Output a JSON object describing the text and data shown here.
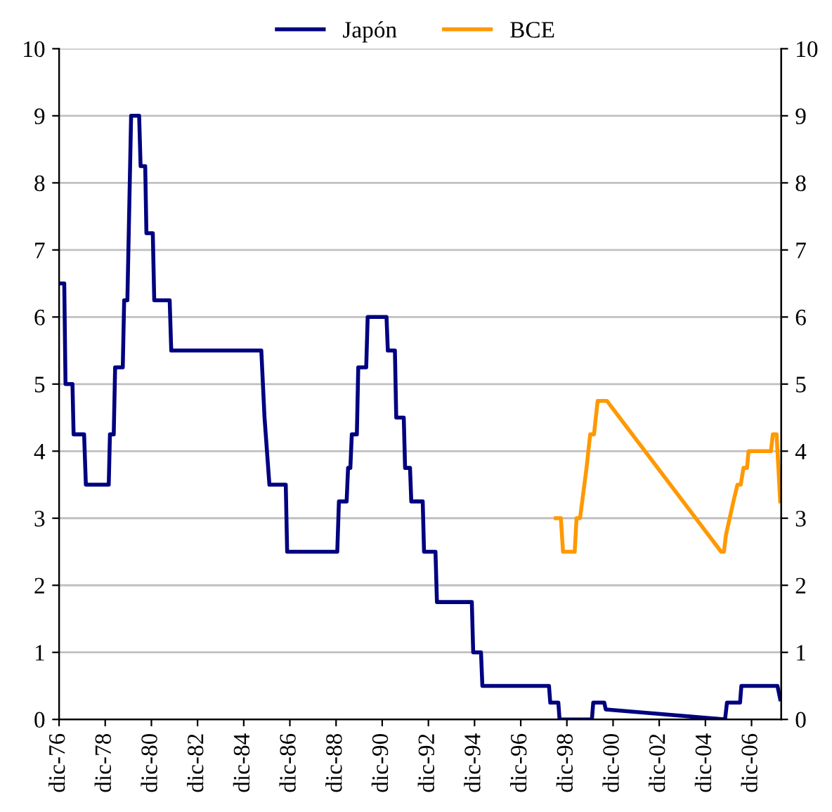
{
  "chart_data": {
    "type": "line",
    "series": [
      {
        "name": "Japón",
        "color": "#000080",
        "x": [
          "1976-12-01",
          "1977-02-21",
          "1977-03-13",
          "1977-07-01",
          "1977-07-19",
          "1978-01-01",
          "1978-01-29",
          "1979-01-26",
          "1979-02-14",
          "1979-04-15",
          "1979-05-07",
          "1979-09-05",
          "1979-09-27",
          "1979-11-17",
          "1980-01-15",
          "1980-05-21",
          "1980-06-13",
          "1980-08-25",
          "1980-09-13",
          "1980-12-23",
          "1981-01-15",
          "1981-09-16",
          "1981-10-11",
          "1985-09-05",
          "1985-10-26",
          "1986-01-11",
          "1986-09-27",
          "1986-10-19",
          "1988-12-20",
          "1989-01-15",
          "1989-05-17",
          "1989-06-09",
          "1989-07-15",
          "1989-08-07",
          "1989-10-26",
          "1989-11-17",
          "1990-03-23",
          "1990-04-15",
          "1991-02-07",
          "1991-02-28",
          "1991-06-20",
          "1991-07-11",
          "1991-11-07",
          "1991-11-28",
          "1992-02-14",
          "1992-03-05",
          "1992-09-02",
          "1992-09-23",
          "1993-03-23",
          "1993-04-15",
          "1994-10-19",
          "1994-11-10",
          "1995-03-13",
          "1995-04-04",
          "1998-02-21",
          "1998-03-13",
          "1998-07-19",
          "1998-08-07",
          "2000-01-01",
          "2000-01-22",
          "2000-07-15",
          "2000-08-07",
          "2005-10-08",
          "2005-11-07",
          "2006-06-02",
          "2006-06-23",
          "2008-01-15",
          "2008-02-28"
        ],
        "values": [
          6.5,
          6.5,
          5.0,
          5.0,
          4.25,
          4.25,
          3.5,
          3.5,
          4.25,
          4.25,
          5.25,
          5.25,
          6.25,
          6.25,
          9.0,
          9.0,
          8.25,
          8.25,
          7.25,
          7.25,
          6.25,
          6.25,
          5.5,
          5.5,
          4.5,
          3.5,
          3.5,
          2.5,
          2.5,
          3.25,
          3.25,
          3.75,
          3.75,
          4.25,
          4.25,
          5.25,
          5.25,
          6.0,
          6.0,
          5.5,
          5.5,
          4.5,
          4.5,
          3.75,
          3.75,
          3.25,
          3.25,
          2.5,
          2.5,
          1.75,
          1.75,
          1.0,
          1.0,
          0.5,
          0.5,
          0.25,
          0.25,
          0,
          0,
          0.25,
          0.25,
          0.15,
          0,
          0.25,
          0.25,
          0.5,
          0.5,
          0.3
        ]
      },
      {
        "name": "BCE",
        "color": "#ff9900",
        "x": [
          "1998-06-09",
          "1998-08-28",
          "1998-10-01",
          "1999-04-04",
          "1999-05-03",
          "1999-06-27",
          "1999-10-08",
          "1999-12-05",
          "2000-02-03",
          "2000-04-01",
          "2000-08-25",
          "2005-08-07",
          "2005-09-20",
          "2005-10-22",
          "2005-12-20",
          "2006-02-17",
          "2006-04-22",
          "2006-06-13",
          "2006-07-26",
          "2006-09-20",
          "2006-10-15",
          "2007-10-04",
          "2007-11-03",
          "2008-01-01",
          "2008-02-28"
        ],
        "values": [
          3.0,
          3.0,
          2.5,
          2.5,
          3.0,
          3.0,
          3.75,
          4.25,
          4.25,
          4.75,
          4.75,
          2.5,
          2.5,
          2.75,
          3.0,
          3.25,
          3.5,
          3.5,
          3.75,
          3.75,
          4.0,
          4.0,
          4.25,
          4.25,
          3.25
        ]
      }
    ],
    "xlim": [
      "1976-12-01",
      "2008-03-15"
    ],
    "xticks": [
      {
        "value": "1976-12-01",
        "label": "dic-76"
      },
      {
        "value": "1978-12-01",
        "label": "dic-78"
      },
      {
        "value": "1980-12-01",
        "label": "dic-80"
      },
      {
        "value": "1982-12-01",
        "label": "dic-82"
      },
      {
        "value": "1984-12-01",
        "label": "dic-84"
      },
      {
        "value": "1986-12-01",
        "label": "dic-86"
      },
      {
        "value": "1988-12-01",
        "label": "dic-88"
      },
      {
        "value": "1990-12-01",
        "label": "dic-90"
      },
      {
        "value": "1992-12-01",
        "label": "dic-92"
      },
      {
        "value": "1994-12-01",
        "label": "dic-94"
      },
      {
        "value": "1996-12-01",
        "label": "dic-96"
      },
      {
        "value": "1998-12-01",
        "label": "dic-98"
      },
      {
        "value": "2000-12-01",
        "label": "dic-00"
      },
      {
        "value": "2002-12-01",
        "label": "dic-02"
      },
      {
        "value": "2004-12-01",
        "label": "dic-04"
      },
      {
        "value": "2006-12-01",
        "label": "dic-06"
      }
    ],
    "ylim": [
      0,
      10
    ],
    "yticks": [
      0,
      1,
      2,
      3,
      4,
      5,
      6,
      7,
      8,
      9,
      10
    ],
    "y2lim": [
      0,
      10
    ],
    "y2ticks": [
      0,
      1,
      2,
      3,
      4,
      5,
      6,
      7,
      8,
      9,
      10
    ],
    "grid": "y",
    "legend": "top",
    "marker": "none",
    "line_style": "solid"
  }
}
